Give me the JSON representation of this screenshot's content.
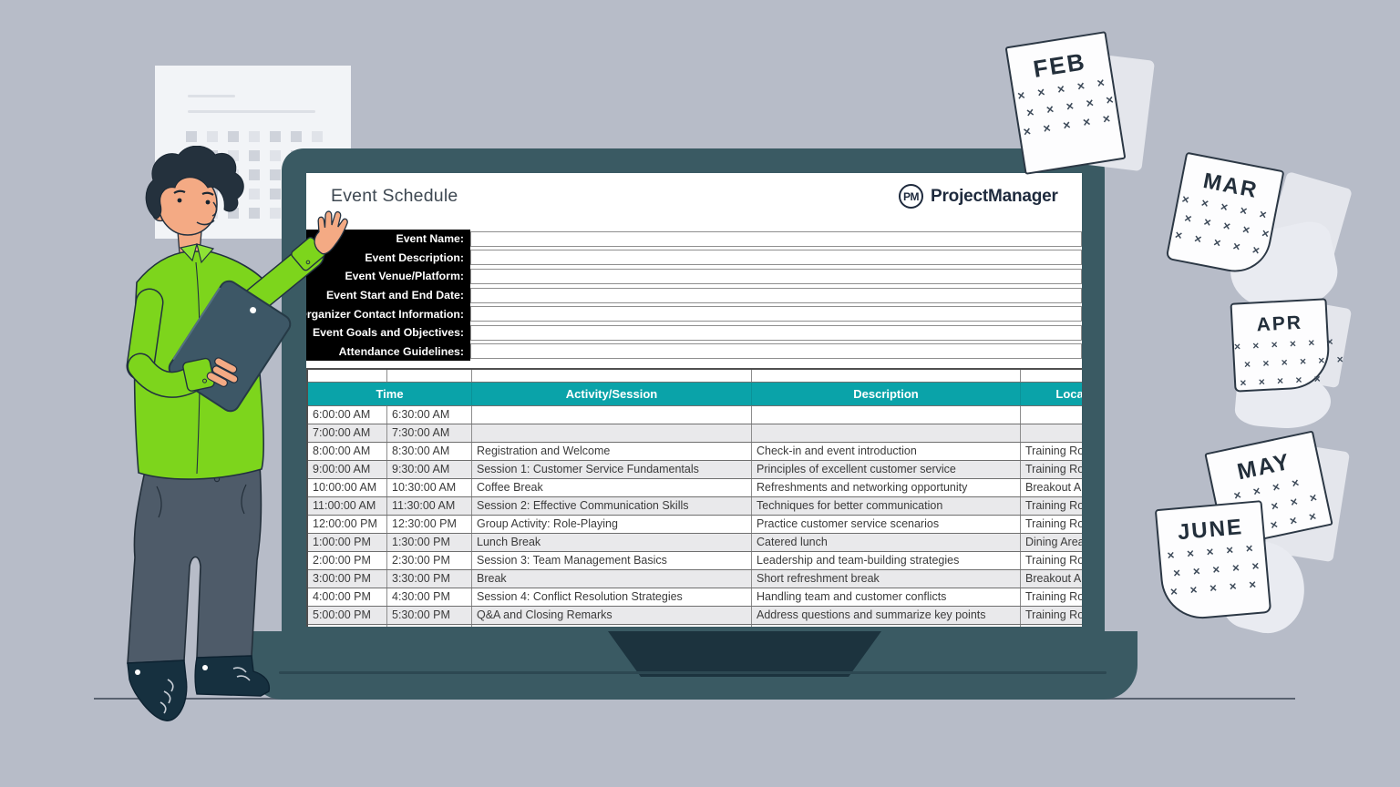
{
  "screen": {
    "title": "Event Schedule",
    "logo": {
      "badge": "PM",
      "name": "ProjectManager"
    },
    "form": {
      "fields": [
        "Event Name:",
        "Event Description:",
        "Event Venue/Platform:",
        "Event Start and End Date:",
        "Organizer Contact Information:",
        "Event Goals and Objectives:",
        "Attendance Guidelines:"
      ],
      "values": [
        "",
        "",
        "",
        "",
        "",
        "",
        ""
      ]
    },
    "table": {
      "headers": [
        "Time",
        "Activity/Session",
        "Description",
        "Location"
      ],
      "rows": [
        [
          "6:00:00 AM",
          "6:30:00 AM",
          "",
          "",
          ""
        ],
        [
          "7:00:00 AM",
          "7:30:00 AM",
          "",
          "",
          ""
        ],
        [
          "8:00:00 AM",
          "8:30:00 AM",
          "Registration and Welcome",
          "Check-in and event introduction",
          "Training Room"
        ],
        [
          "9:00:00 AM",
          "9:30:00 AM",
          "Session 1: Customer Service Fundamentals",
          "Principles of excellent customer service",
          "Training Room"
        ],
        [
          "10:00:00 AM",
          "10:30:00 AM",
          "Coffee Break",
          "Refreshments and networking opportunity",
          "Breakout Area"
        ],
        [
          "11:00:00 AM",
          "11:30:00 AM",
          "Session 2: Effective Communication Skills",
          "Techniques for better communication",
          "Training Room"
        ],
        [
          "12:00:00 PM",
          "12:30:00 PM",
          "Group Activity: Role-Playing",
          "Practice customer service scenarios",
          "Training Room"
        ],
        [
          "1:00:00 PM",
          "1:30:00 PM",
          "Lunch Break",
          "Catered lunch",
          "Dining Area"
        ],
        [
          "2:00:00 PM",
          "2:30:00 PM",
          "Session 3: Team Management Basics",
          "Leadership and team-building strategies",
          "Training Room"
        ],
        [
          "3:00:00 PM",
          "3:30:00 PM",
          "Break",
          "Short refreshment break",
          "Breakout Area"
        ],
        [
          "4:00:00 PM",
          "4:30:00 PM",
          "Session 4: Conflict Resolution Strategies",
          "Handling team and customer conflicts",
          "Training Room"
        ],
        [
          "5:00:00 PM",
          "5:30:00 PM",
          "Q&A and Closing Remarks",
          "Address questions and summarize key points",
          "Training Room"
        ]
      ]
    }
  },
  "decor": {
    "calendar_pages": [
      {
        "month": "FEB",
        "x_rows": [
          5,
          5,
          5
        ]
      },
      {
        "month": "MAR",
        "x_rows": [
          5,
          5,
          5
        ]
      },
      {
        "month": "APR",
        "x_rows": [
          6,
          6,
          5
        ]
      },
      {
        "month": "MAY",
        "x_rows": [
          4,
          5,
          5
        ]
      },
      {
        "month": "JUNE",
        "x_rows": [
          5,
          5,
          5
        ]
      }
    ],
    "x_mark": "×"
  },
  "colors": {
    "background": "#b7bcc8",
    "laptop": "#3a5a63",
    "table_header_teal": "#0aa3a9",
    "form_block": "#000000",
    "logo_navy": "#1e2a3d",
    "shirt_green": "#7dd51c",
    "zebra_gray": "#e9e9eb"
  }
}
